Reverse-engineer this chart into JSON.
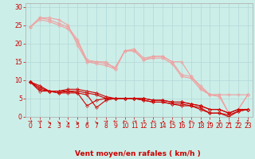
{
  "title": "",
  "xlabel": "Vent moyen/en rafales ( km/h )",
  "ylabel": "",
  "bg_color": "#cceee8",
  "grid_color": "#b0d8d8",
  "xlim": [
    -0.5,
    23.5
  ],
  "ylim": [
    0,
    31
  ],
  "yticks": [
    0,
    5,
    10,
    15,
    20,
    25,
    30
  ],
  "xticks": [
    0,
    1,
    2,
    3,
    4,
    5,
    6,
    7,
    8,
    9,
    10,
    11,
    12,
    13,
    14,
    15,
    16,
    17,
    18,
    19,
    20,
    21,
    22,
    23
  ],
  "lines_pink": [
    [
      0,
      1,
      2,
      3,
      4,
      5,
      6,
      7,
      8,
      9,
      10,
      11,
      12,
      13,
      14,
      15,
      16,
      17,
      18,
      19,
      20,
      21,
      22,
      23
    ],
    [
      24.5,
      27,
      27,
      26.5,
      25,
      19.5,
      15,
      15,
      15,
      13,
      18,
      18,
      15.5,
      16.5,
      16.5,
      15,
      15,
      11,
      8.5,
      6,
      6,
      6,
      6,
      6
    ]
  ],
  "lines_pink2": [
    [
      0,
      1,
      2,
      3,
      4,
      5,
      6,
      7,
      8,
      9,
      10,
      11,
      12,
      13,
      14,
      15,
      16,
      17,
      18,
      19,
      20,
      21,
      22,
      23
    ],
    [
      24.5,
      27,
      26.5,
      25.5,
      24.5,
      21,
      15.5,
      15,
      14.5,
      13.5,
      18,
      18.5,
      16,
      16.5,
      16.5,
      15,
      11.5,
      11,
      8,
      6,
      6,
      1,
      2,
      6
    ]
  ],
  "lines_pink3": [
    [
      0,
      1,
      2,
      3,
      4,
      5,
      6,
      7,
      8,
      9,
      10,
      11,
      12,
      13,
      14,
      15,
      16,
      17,
      18,
      19,
      20,
      21,
      22,
      23
    ],
    [
      24.5,
      26.5,
      26,
      25,
      24,
      20.5,
      15,
      14.5,
      14,
      13,
      18,
      18,
      15.5,
      16,
      16,
      14.5,
      11,
      10.5,
      7.5,
      6,
      5.5,
      1,
      2,
      6
    ]
  ],
  "lines_red": [
    [
      0,
      1,
      2,
      3,
      4,
      5,
      6,
      7,
      8,
      9,
      10,
      11,
      12,
      13,
      14,
      15,
      16,
      17,
      18,
      19,
      20,
      21,
      22,
      23
    ],
    [
      9.5,
      8.5,
      7,
      6.5,
      6.5,
      6.5,
      3,
      4.5,
      5,
      5,
      5,
      5,
      4.5,
      4,
      4,
      3.5,
      3,
      3,
      2,
      1,
      1,
      0,
      1.5,
      2
    ]
  ],
  "lines_red2": [
    [
      0,
      1,
      2,
      3,
      4,
      5,
      6,
      7,
      8,
      9,
      10,
      11,
      12,
      13,
      14,
      15,
      16,
      17,
      18,
      19,
      20,
      21,
      22,
      23
    ],
    [
      9.5,
      8,
      7,
      6.5,
      7,
      6.5,
      6,
      2.5,
      4.5,
      5,
      5,
      5,
      4.5,
      4,
      4,
      3.5,
      3.5,
      3,
      2.5,
      1,
      1,
      0.5,
      1.5,
      2
    ]
  ],
  "lines_red3": [
    [
      0,
      1,
      2,
      3,
      4,
      5,
      6,
      7,
      8,
      9,
      10,
      11,
      12,
      13,
      14,
      15,
      16,
      17,
      18,
      19,
      20,
      21,
      22,
      23
    ],
    [
      9.5,
      7.5,
      7,
      7,
      7,
      7,
      6.5,
      6,
      5,
      5,
      5,
      5,
      5,
      4.5,
      4.5,
      4,
      4,
      3.5,
      3,
      2,
      2,
      1,
      2,
      2
    ]
  ],
  "lines_red4": [
    [
      0,
      1,
      2,
      3,
      4,
      5,
      6,
      7,
      8,
      9,
      10,
      11,
      12,
      13,
      14,
      15,
      16,
      17,
      18,
      19,
      20,
      21,
      22,
      23
    ],
    [
      9.5,
      7,
      7,
      7,
      7.5,
      7.5,
      7,
      6.5,
      5.5,
      5,
      5,
      5,
      5,
      4.5,
      4.5,
      4,
      4,
      3.5,
      3,
      2,
      2,
      1,
      2,
      2
    ]
  ],
  "color_pink": "#f0a0a0",
  "color_red": "#cc0000",
  "marker_size": 2.0,
  "linewidth": 0.8,
  "fontsize_xlabel": 6.5,
  "fontsize_ticks": 5.5,
  "wind_arrows": [
    "→",
    "→",
    "↘",
    "↘",
    "↘",
    "↘",
    "↓",
    "↘",
    "→",
    "←",
    "←",
    "→",
    "↑",
    "←",
    "↗",
    "←",
    "↗",
    "←",
    "↗",
    "↘",
    "↑",
    "↓",
    "↕",
    "↕"
  ]
}
